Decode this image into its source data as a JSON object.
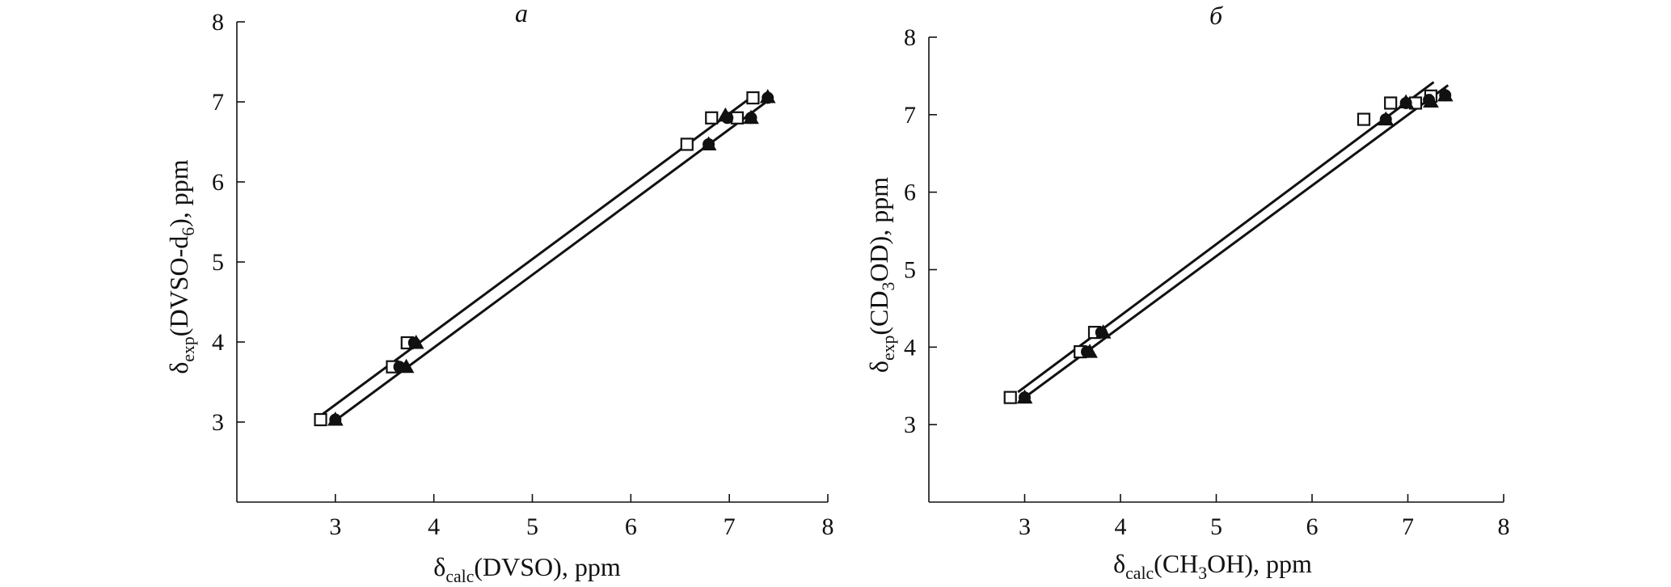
{
  "chart_data": [
    {
      "type": "scatter",
      "panel_label": "а",
      "title": "",
      "xlabel": {
        "main": "δ",
        "sub": "calc",
        "rest": "(DVSO), ppm"
      },
      "ylabel": {
        "main": "δ",
        "sub": "exp",
        "mid": "(DVSO-d",
        "sub2": "6",
        "rest": "), ppm"
      },
      "xlim": [
        2,
        8
      ],
      "ylim": [
        2,
        8
      ],
      "xticks": [
        3,
        4,
        5,
        6,
        7,
        8
      ],
      "yticks": [
        3,
        4,
        5,
        6,
        7,
        8
      ],
      "grid": false,
      "legend": "none",
      "series": [
        {
          "marker": "square",
          "points": [
            [
              2.85,
              3.03
            ],
            [
              3.58,
              3.69
            ],
            [
              3.73,
              3.99
            ],
            [
              6.57,
              6.47
            ],
            [
              6.82,
              6.8
            ],
            [
              7.08,
              6.8
            ],
            [
              7.24,
              7.05
            ]
          ]
        },
        {
          "marker": "triangle",
          "points": [
            [
              3.0,
              3.03
            ],
            [
              3.72,
              3.69
            ],
            [
              3.82,
              3.99
            ],
            [
              6.79,
              6.47
            ],
            [
              6.96,
              6.83
            ],
            [
              7.22,
              6.8
            ],
            [
              7.39,
              7.06
            ]
          ]
        },
        {
          "marker": "circle",
          "points": [
            [
              3.0,
              3.03
            ],
            [
              3.65,
              3.69
            ],
            [
              3.8,
              3.99
            ],
            [
              6.79,
              6.47
            ],
            [
              6.98,
              6.8
            ],
            [
              7.22,
              6.8
            ],
            [
              7.39,
              7.05
            ]
          ]
        }
      ],
      "fit_lines": [
        {
          "x": [
            2.85,
            7.27
          ],
          "y": [
            3.08,
            7.1
          ]
        },
        {
          "x": [
            3.0,
            7.42
          ],
          "y": [
            3.02,
            7.04
          ]
        }
      ]
    },
    {
      "type": "scatter",
      "panel_label": "б",
      "title": "",
      "xlabel": {
        "main": "δ",
        "sub": "calc",
        "mid": "(CH",
        "sub2": "3",
        "rest": "OH), ppm"
      },
      "ylabel": {
        "main": "δ",
        "sub": "exp",
        "mid": "(CD",
        "sub2": "3",
        "rest": "OD), ppm"
      },
      "xlim": [
        2,
        8
      ],
      "ylim": [
        2,
        8
      ],
      "xticks": [
        3,
        4,
        5,
        6,
        7,
        8
      ],
      "yticks": [
        3,
        4,
        5,
        6,
        7,
        8
      ],
      "grid": false,
      "legend": "none",
      "series": [
        {
          "marker": "square",
          "points": [
            [
              2.85,
              3.35
            ],
            [
              3.58,
              3.94
            ],
            [
              3.73,
              4.19
            ],
            [
              6.54,
              6.94
            ],
            [
              6.82,
              7.15
            ],
            [
              7.08,
              7.15
            ],
            [
              7.24,
              7.24
            ]
          ]
        },
        {
          "marker": "triangle",
          "points": [
            [
              3.0,
              3.35
            ],
            [
              3.68,
              3.94
            ],
            [
              3.82,
              4.19
            ],
            [
              6.77,
              6.94
            ],
            [
              6.98,
              7.16
            ],
            [
              7.24,
              7.17
            ],
            [
              7.39,
              7.25
            ]
          ]
        },
        {
          "marker": "circle",
          "points": [
            [
              3.0,
              3.35
            ],
            [
              3.65,
              3.94
            ],
            [
              3.8,
              4.19
            ],
            [
              6.77,
              6.94
            ],
            [
              6.98,
              7.15
            ],
            [
              7.22,
              7.19
            ],
            [
              7.39,
              7.25
            ]
          ]
        }
      ],
      "fit_lines": [
        {
          "x": [
            2.93,
            7.27
          ],
          "y": [
            3.42,
            7.42
          ]
        },
        {
          "x": [
            3.0,
            7.42
          ],
          "y": [
            3.35,
            7.38
          ]
        }
      ]
    }
  ]
}
